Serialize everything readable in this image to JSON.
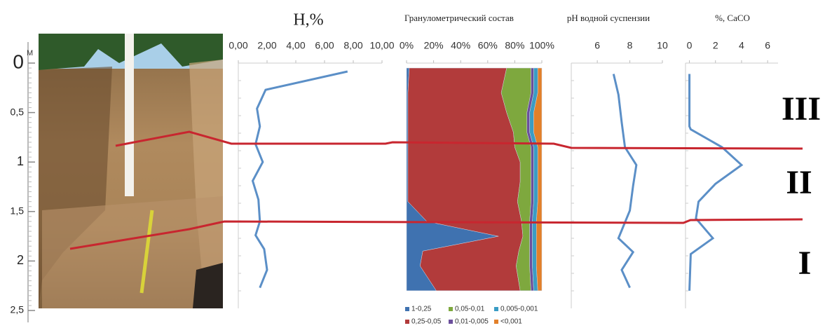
{
  "depth_axis": {
    "ylim": [
      0,
      2.5
    ],
    "yticks": [
      0,
      {
        "value": 0.5,
        "label": "0,5"
      },
      1,
      {
        "value": 1.5,
        "label": "1,5"
      },
      2,
      {
        "value": 2.5,
        "label": "2,5"
      }
    ],
    "unit": "M"
  },
  "horizons": [
    "III",
    "II",
    "I"
  ],
  "chart_data": [
    {
      "type": "line",
      "title": "H,%",
      "depth": [
        0.085,
        0.27,
        0.46,
        0.64,
        0.82,
        1.0,
        1.19,
        1.38,
        1.6,
        1.74,
        1.88,
        2.09,
        2.27
      ],
      "series": [
        {
          "color": "#5b8fc7",
          "values": [
            7.6,
            1.9,
            1.3,
            1.5,
            1.2,
            1.7,
            1.0,
            1.4,
            1.5,
            1.2,
            1.8,
            2.0,
            1.5
          ]
        }
      ],
      "xlim": [
        0,
        10
      ],
      "xticks": [
        {
          "value": 0,
          "label": "0,00"
        },
        {
          "value": 2,
          "label": "2,00"
        },
        {
          "value": 4,
          "label": "4,00"
        },
        {
          "value": 6,
          "label": "6,00"
        },
        {
          "value": 8,
          "label": "8,00"
        },
        {
          "value": 10,
          "label": "10,00"
        }
      ]
    },
    {
      "type": "area",
      "title": "Гранулометрический состав",
      "depth": [
        0.05,
        0.3,
        0.5,
        0.7,
        0.85,
        1.0,
        1.2,
        1.4,
        1.6,
        1.75,
        1.9,
        2.05,
        2.3
      ],
      "series": [
        {
          "name": "1-0,25",
          "color": "#3f72b0",
          "values": [
            2,
            1,
            1,
            1,
            1,
            1,
            1,
            1,
            15,
            68,
            12,
            10,
            22
          ]
        },
        {
          "name": "0,25-0,05",
          "color": "#b23b3b",
          "values": [
            72,
            69,
            73,
            78,
            79,
            83,
            83,
            81,
            70,
            18,
            71,
            71,
            62
          ]
        },
        {
          "name": "0,05-0,01",
          "color": "#7ea83e",
          "values": [
            18,
            22,
            15,
            10,
            12,
            8,
            8,
            10,
            6,
            5,
            8,
            10,
            8
          ]
        },
        {
          "name": "0,01-0,005",
          "color": "#6b4f9c",
          "values": [
            2,
            2,
            2,
            2,
            2,
            2,
            2,
            2,
            2,
            2,
            2,
            2,
            2
          ]
        },
        {
          "name": "0,005-0,001",
          "color": "#3a9cc4",
          "values": [
            3,
            3,
            3,
            3,
            3,
            3,
            3,
            3,
            3,
            3,
            3,
            3,
            3
          ]
        },
        {
          "name": "<0,001",
          "color": "#e2802a",
          "values": [
            3,
            3,
            6,
            6,
            3,
            3,
            3,
            3,
            4,
            4,
            4,
            4,
            3
          ]
        }
      ],
      "xlim": [
        0,
        100
      ],
      "xticks": [
        {
          "value": 0,
          "label": "0%"
        },
        {
          "value": 20,
          "label": "20%"
        },
        {
          "value": 40,
          "label": "40%"
        },
        {
          "value": 60,
          "label": "60%"
        },
        {
          "value": 80,
          "label": "80%"
        },
        {
          "value": 100,
          "label": "100%"
        }
      ]
    },
    {
      "type": "line",
      "title": "pH водной суспензии",
      "depth": [
        0.11,
        0.32,
        0.6,
        0.85,
        1.03,
        1.24,
        1.49,
        1.77,
        1.91,
        2.09,
        2.27
      ],
      "series": [
        {
          "color": "#5b8fc7",
          "values": [
            7.0,
            7.3,
            7.5,
            7.7,
            8.4,
            8.2,
            8.0,
            7.3,
            8.2,
            7.5,
            8.0
          ]
        }
      ],
      "xlim": [
        4.4,
        10
      ],
      "xticks": [
        6,
        8,
        10
      ]
    },
    {
      "type": "line",
      "title": "%, CaCO",
      "depth": [
        0.11,
        0.64,
        0.67,
        0.85,
        1.03,
        1.22,
        1.4,
        1.57,
        1.77,
        1.93,
        2.3
      ],
      "series": [
        {
          "color": "#5b8fc7",
          "values": [
            0,
            0,
            0.1,
            2.5,
            4.0,
            2.0,
            0.7,
            0.5,
            1.8,
            0.1,
            0
          ]
        }
      ],
      "xlim": [
        -0.3,
        6.8
      ],
      "xticks": [
        0,
        2,
        4,
        6
      ]
    }
  ]
}
